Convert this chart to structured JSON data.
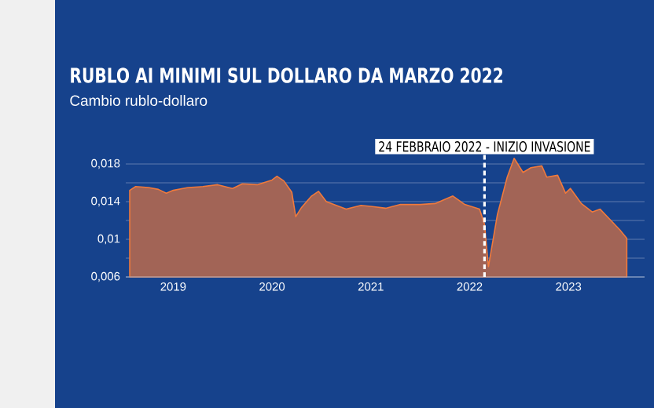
{
  "chart_data": {
    "type": "area",
    "title": "RUBLO AI MINIMI SUL DOLLARO DA MARZO 2022",
    "subtitle": "Cambio rublo-dollaro",
    "series": [
      {
        "color": "#f07a3c",
        "x": [
          2018.56,
          2018.62,
          2018.75,
          2018.85,
          2018.93,
          2019.0,
          2019.15,
          2019.3,
          2019.45,
          2019.6,
          2019.7,
          2019.85,
          2020.0,
          2020.05,
          2020.12,
          2020.2,
          2020.24,
          2020.3,
          2020.4,
          2020.47,
          2020.55,
          2020.75,
          2020.9,
          2021.0,
          2021.15,
          2021.3,
          2021.5,
          2021.65,
          2021.83,
          2021.95,
          2022.1,
          2022.15,
          2022.19,
          2022.28,
          2022.38,
          2022.45,
          2022.54,
          2022.62,
          2022.73,
          2022.78,
          2022.89,
          2022.97,
          2023.02,
          2023.13,
          2023.24,
          2023.32,
          2023.42,
          2023.52,
          2023.59
        ],
        "values": [
          0.0152,
          0.0156,
          0.0155,
          0.0153,
          0.0149,
          0.0152,
          0.0155,
          0.0156,
          0.0158,
          0.0154,
          0.0159,
          0.0158,
          0.0163,
          0.0167,
          0.0162,
          0.015,
          0.0124,
          0.0134,
          0.0146,
          0.0151,
          0.014,
          0.0132,
          0.0136,
          0.0135,
          0.0133,
          0.0137,
          0.0137,
          0.0138,
          0.0146,
          0.0137,
          0.0132,
          0.0116,
          0.0071,
          0.0126,
          0.0166,
          0.0186,
          0.0171,
          0.0176,
          0.0178,
          0.0166,
          0.0168,
          0.0149,
          0.0154,
          0.0138,
          0.0129,
          0.0132,
          0.0121,
          0.011,
          0.0101
        ]
      }
    ],
    "xlim": [
      2018.52,
      2023.77
    ],
    "xticks": [
      2019,
      2020,
      2021,
      2022,
      2023
    ],
    "ylim": [
      0.006,
      0.019
    ],
    "yticks": [
      {
        "value": 0.006,
        "label": "0,006"
      },
      {
        "value": 0.008,
        "label": null
      },
      {
        "value": 0.01,
        "label": "0,01"
      },
      {
        "value": 0.012,
        "label": null
      },
      {
        "value": 0.014,
        "label": "0,014"
      },
      {
        "value": 0.016,
        "label": null
      },
      {
        "value": 0.018,
        "label": "0,018"
      }
    ],
    "grid": "y",
    "ref_lines": [
      {
        "axis": "x",
        "value": 2022.15,
        "label": "24 FEBBRAIO 2022 - INIZIO INVASIONE",
        "color": "#ffffff",
        "line_style": "dashed"
      }
    ]
  }
}
